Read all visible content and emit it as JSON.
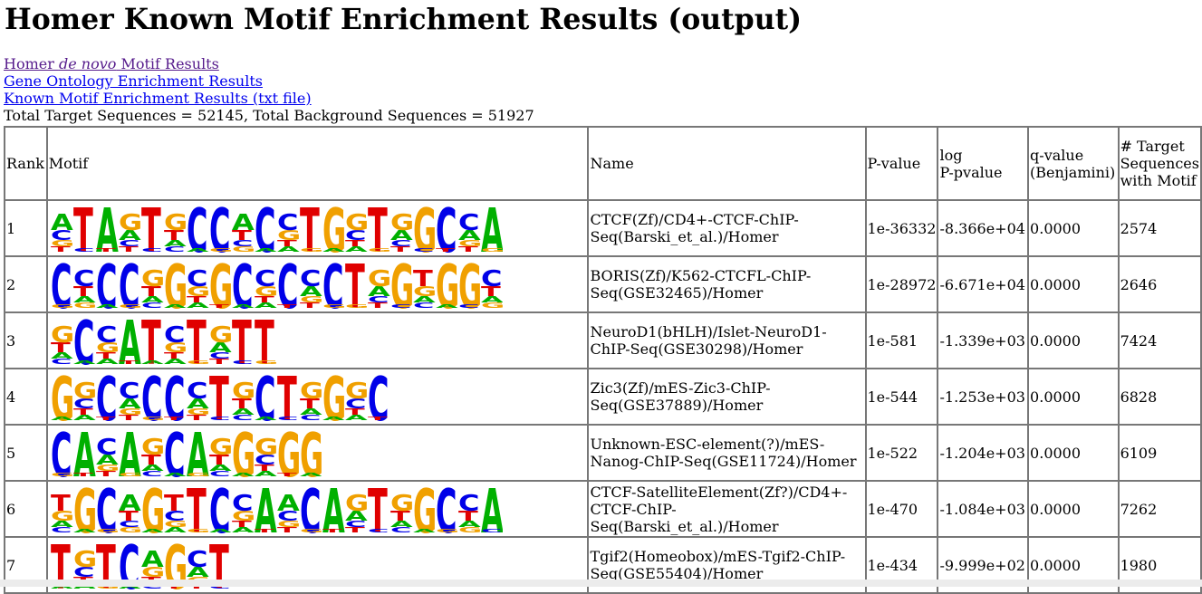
{
  "page": {
    "title": "Homer Known Motif Enrichment Results (output)",
    "links": {
      "denovo_prefix": "Homer ",
      "denovo_italic": "de novo",
      "denovo_suffix": " Motif Results",
      "go": "Gene Ontology Enrichment Results",
      "txt": "Known Motif Enrichment Results (txt file)"
    },
    "totals": "Total Target Sequences = 52145, Total Background Sequences = 51927"
  },
  "table": {
    "headers": {
      "rank": "Rank",
      "motif": "Motif",
      "name": "Name",
      "pvalue": "P-value",
      "logp_1": "log",
      "logp_2": "P-pvalue",
      "q_1": "q-value",
      "q_2": "(Benjamini)",
      "target_1": "# Target",
      "target_2": "Sequences",
      "target_3": "with Motif"
    },
    "rows": [
      {
        "rank": "1",
        "name": "CTCF(Zf)/CD4+-CTCF-ChIP-Seq(Barski_et_al.)/Homer",
        "pvalue": "1e-36332",
        "logp": "-8.366e+04",
        "q": "0.0000",
        "target": "2574",
        "motif": "ATAGTGCCACCTGGTGGCCA"
      },
      {
        "rank": "2",
        "name": "BORIS(Zf)/K562-CTCFL-ChIP-Seq(GSE32465)/Homer",
        "pvalue": "1e-28972",
        "logp": "-6.671e+04",
        "q": "0.0000",
        "target": "2646",
        "motif": "CCCCGGCGCCCCCTGGTGGC"
      },
      {
        "rank": "3",
        "name": "NeuroD1(bHLH)/Islet-NeuroD1-ChIP-Seq(GSE30298)/Homer",
        "pvalue": "1e-581",
        "logp": "-1.339e+03",
        "q": "0.0000",
        "target": "7424",
        "motif": "GCCATCTGTT"
      },
      {
        "rank": "4",
        "name": "Zic3(Zf)/mES-Zic3-ChIP-Seq(GSE37889)/Homer",
        "pvalue": "1e-544",
        "logp": "-1.253e+03",
        "q": "0.0000",
        "target": "6828",
        "motif": "GGCCCCCTGCTGGGC"
      },
      {
        "rank": "5",
        "name": "Unknown-ESC-element(?)/mES-Nanog-ChIP-Seq(GSE11724)/Homer",
        "pvalue": "1e-522",
        "logp": "-1.204e+03",
        "q": "0.0000",
        "target": "6109",
        "motif": "CACAGCAGGGGG"
      },
      {
        "rank": "6",
        "name": "CTCF-SatelliteElement(Zf?)/CD4+-CTCF-ChIP-Seq(Barski_et_al.)/Homer",
        "pvalue": "1e-470",
        "logp": "-1.084e+03",
        "q": "0.0000",
        "target": "7262",
        "motif": "TGCAGTTCCAACAGTGGCCA"
      },
      {
        "rank": "7",
        "name": "Tgif2(Homeobox)/mES-Tgif2-ChIP-Seq(GSE55404)/Homer",
        "pvalue": "1e-434",
        "logp": "-9.999e+02",
        "q": "0.0000",
        "target": "1980",
        "motif": "TGTCAGCT"
      }
    ]
  },
  "colors": {
    "A": "#00b000",
    "C": "#0000e8",
    "G": "#f0a000",
    "T": "#e00000",
    "link": "#0000ee",
    "visited": "#551a8b",
    "border": "#777777"
  }
}
